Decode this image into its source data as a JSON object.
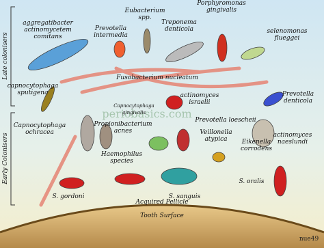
{
  "labels": {
    "late": "Late colonisers",
    "early": "Early Colonisers",
    "watermark": "periobasics.com",
    "signature": "nue49"
  },
  "nodes": [
    {
      "lines": [
        "aggregatibacter",
        "actinomycetem",
        "comitans"
      ]
    },
    {
      "lines": [
        "Prevotella",
        "intermedia"
      ]
    },
    {
      "lines": [
        "Eubacterium",
        "spp."
      ]
    },
    {
      "lines": [
        "Treponema",
        "denticola"
      ]
    },
    {
      "lines": [
        "Porphyromonas",
        "gingivalis"
      ]
    },
    {
      "lines": [
        "selenomonas",
        "flueggei"
      ]
    },
    {
      "lines": [
        "capnocytophaga",
        "sputigena"
      ]
    },
    {
      "lines": [
        "Fusobacterium nucleatum"
      ]
    },
    {
      "lines": [
        "Prevotella",
        "denticola"
      ]
    },
    {
      "lines": [
        "Capnocytophaga",
        "gingivalis"
      ]
    },
    {
      "lines": [
        "actinomyces",
        "israelii"
      ]
    },
    {
      "lines": [
        "Capnocytophaga",
        "ochracea"
      ]
    },
    {
      "lines": [
        "Propionibacterium",
        "acnes"
      ]
    },
    {
      "lines": [
        "Prevotella loescheii"
      ]
    },
    {
      "lines": [
        "Veillonella",
        "atypica"
      ]
    },
    {
      "lines": [
        "Eikenella",
        "corrodens"
      ]
    },
    {
      "lines": [
        "actinomyces",
        "naeslundi"
      ]
    },
    {
      "lines": [
        "Haemophilus",
        "species"
      ]
    },
    {
      "lines": [
        "S. gordoni"
      ]
    },
    {
      "lines": [
        "S. sanguis"
      ]
    },
    {
      "lines": [
        "S. oralis"
      ]
    },
    {
      "lines": [
        "Acquired Pellicle"
      ]
    },
    {
      "lines": [
        "Tooth Surface"
      ]
    }
  ]
}
